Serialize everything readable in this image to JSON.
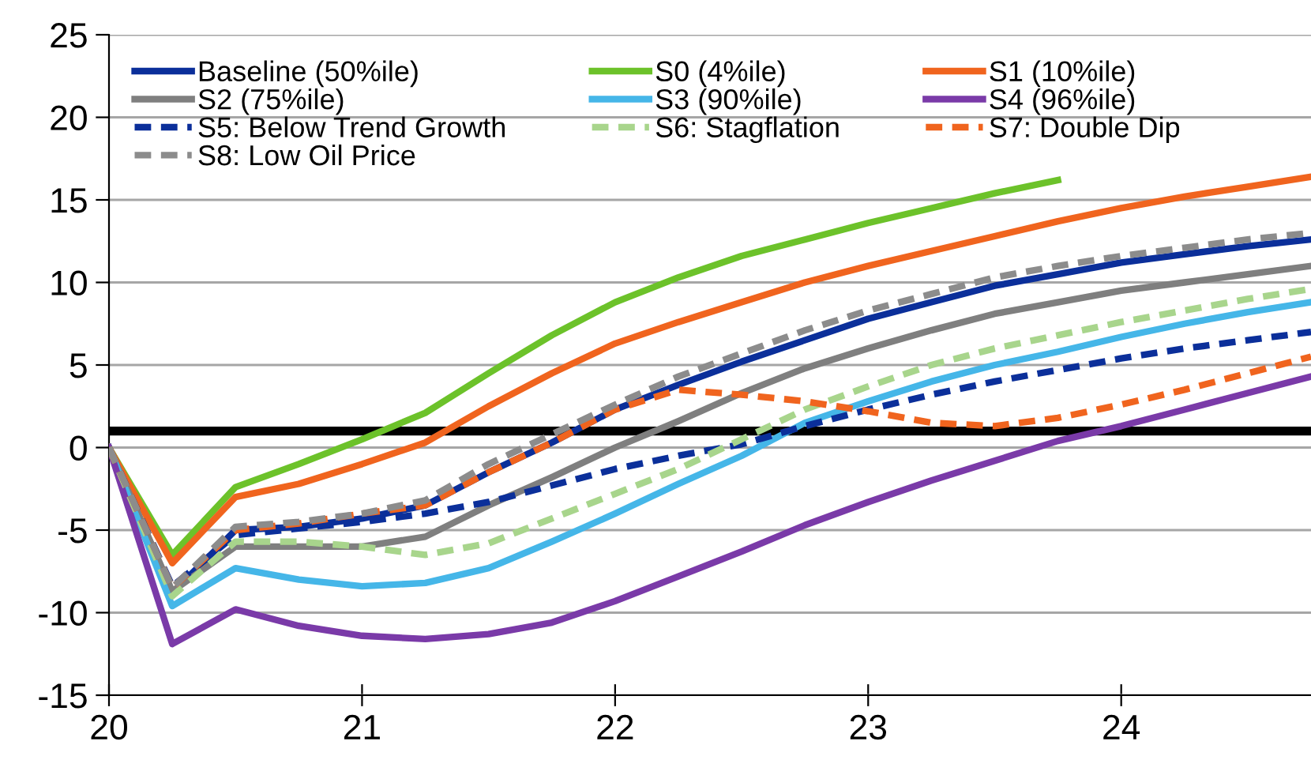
{
  "chart_data": {
    "type": "line",
    "x": [
      20,
      20.25,
      20.5,
      20.75,
      21,
      21.25,
      21.5,
      21.75,
      22,
      22.25,
      22.5,
      22.75,
      23,
      23.25,
      23.5,
      23.75,
      24,
      24.25,
      24.5,
      24.75
    ],
    "series": [
      {
        "name": "Baseline (50%ile)",
        "color": "#0b2f9a",
        "line_style": "solid",
        "values": [
          0,
          -8.8,
          -5,
          -4.8,
          -4.3,
          -3.5,
          -1.5,
          0.3,
          2.3,
          3.8,
          5.2,
          6.5,
          7.8,
          8.8,
          9.8,
          10.5,
          11.2,
          11.7,
          12.2,
          12.6
        ]
      },
      {
        "name": "S0 (4%ile)",
        "color": "#6cc22a",
        "line_style": "solid",
        "values": [
          0,
          -6.5,
          -2.4,
          -1,
          0.5,
          2.1,
          4.5,
          6.8,
          8.8,
          10.3,
          11.6,
          12.6,
          13.6,
          14.5,
          15.4,
          16.2,
          null,
          null,
          null,
          null
        ]
      },
      {
        "name": "S1 (10%ile)",
        "color": "#f0641e",
        "line_style": "solid",
        "values": [
          0,
          -7,
          -3,
          -2.2,
          -1,
          0.3,
          2.5,
          4.5,
          6.3,
          7.6,
          8.8,
          10,
          11,
          11.9,
          12.8,
          13.7,
          14.5,
          15.2,
          15.8,
          16.4
        ]
      },
      {
        "name": "S2 (75%ile)",
        "color": "#7f7f7f",
        "line_style": "solid",
        "values": [
          0,
          -8.7,
          -6,
          -6,
          -6,
          -5.4,
          -3.5,
          -1.8,
          0,
          1.6,
          3.3,
          4.8,
          6,
          7.1,
          8.1,
          8.8,
          9.5,
          10,
          10.5,
          11
        ]
      },
      {
        "name": "S3 (90%ile)",
        "color": "#45b6e8",
        "line_style": "solid",
        "values": [
          0,
          -9.6,
          -7.3,
          -8,
          -8.4,
          -8.2,
          -7.3,
          -5.7,
          -4,
          -2.2,
          -0.5,
          1.5,
          2.8,
          4,
          5,
          5.8,
          6.7,
          7.5,
          8.2,
          8.8
        ]
      },
      {
        "name": "S4 (96%ile)",
        "color": "#7a3aa8",
        "line_style": "solid",
        "values": [
          0,
          -11.9,
          -9.8,
          -10.8,
          -11.4,
          -11.6,
          -11.3,
          -10.6,
          -9.3,
          -7.8,
          -6.3,
          -4.7,
          -3.3,
          -2,
          -0.8,
          0.4,
          1.3,
          2.3,
          3.3,
          4.3
        ]
      },
      {
        "name": "S5: Below Trend Growth",
        "color": "#0b2f9a",
        "line_style": "dashed",
        "values": [
          0,
          -8.4,
          -5.3,
          -4.9,
          -4.5,
          -4,
          -3.3,
          -2.3,
          -1.3,
          -0.5,
          0.2,
          1.3,
          2.3,
          3.2,
          4,
          4.7,
          5.4,
          6,
          6.5,
          7
        ]
      },
      {
        "name": "S6: Stagflation",
        "color": "#a8d58c",
        "line_style": "dashed",
        "values": [
          0,
          -9,
          -5.7,
          -5.7,
          -6,
          -6.5,
          -5.8,
          -4.3,
          -2.8,
          -1.3,
          0.5,
          2.3,
          3.7,
          5,
          6,
          6.8,
          7.6,
          8.3,
          9,
          9.6
        ]
      },
      {
        "name": "S7: Double Dip",
        "color": "#f0641e",
        "line_style": "dashed",
        "values": [
          0,
          -8.5,
          -5,
          -4.6,
          -4,
          -3.5,
          -1.5,
          0.3,
          2.3,
          3.5,
          3.2,
          2.8,
          2.2,
          1.5,
          1.3,
          1.8,
          2.6,
          3.5,
          4.5,
          5.5
        ]
      },
      {
        "name": "S8: Low Oil Price",
        "color": "#8c8c8c",
        "line_style": "dashed",
        "values": [
          0,
          -8.5,
          -4.8,
          -4.5,
          -4,
          -3.2,
          -1,
          0.8,
          2.6,
          4.3,
          5.7,
          7.1,
          8.3,
          9.3,
          10.3,
          11,
          11.6,
          12.1,
          12.6,
          13
        ]
      }
    ],
    "xlim": [
      20,
      24.75
    ],
    "xticks": [
      20,
      21,
      22,
      23,
      24
    ],
    "ylim": [
      -15,
      25
    ],
    "yticks": [
      -15,
      -10,
      -5,
      0,
      5,
      10,
      15,
      20,
      25
    ],
    "ref_lines": [
      {
        "axis": "y",
        "value": 1,
        "color": "#000000"
      }
    ],
    "grid": "y",
    "legend": "top left",
    "marker": "none"
  }
}
